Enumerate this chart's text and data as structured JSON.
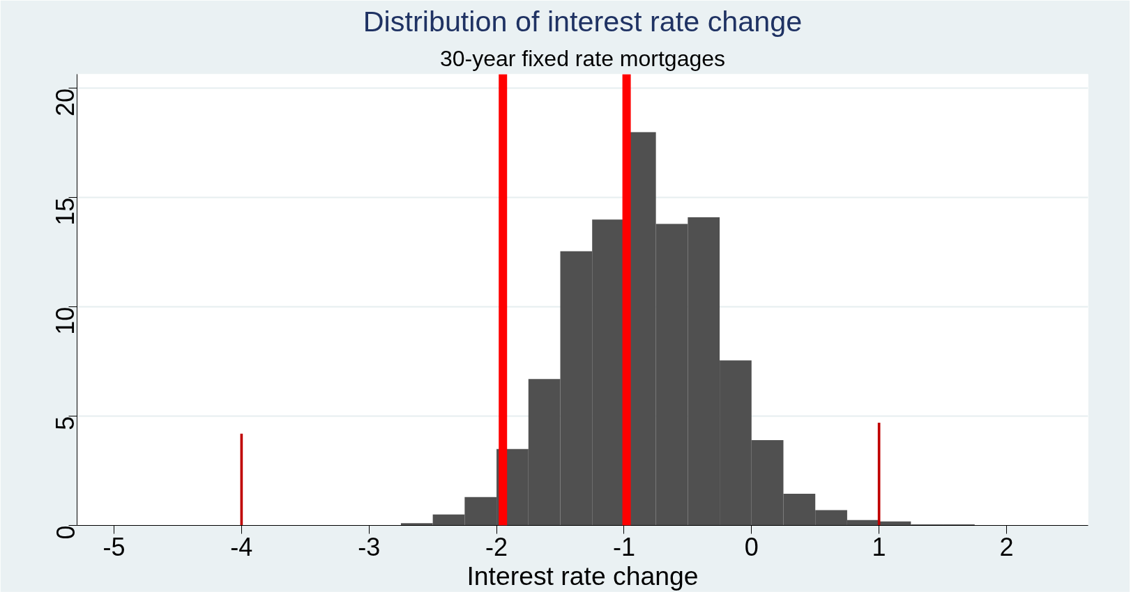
{
  "chart_data": {
    "type": "histogram",
    "title": "Distribution of interest rate change",
    "subtitle": "30-year fixed rate mortgages",
    "xlabel": "Interest rate change",
    "bins": [
      -2.75,
      -2.5,
      -2.25,
      -2.0,
      -1.75,
      -1.5,
      -1.25,
      -1.0,
      -0.75,
      -0.5,
      -0.25,
      0.0,
      0.25,
      0.5,
      0.75,
      1.0,
      1.25,
      1.5,
      1.75
    ],
    "values": [
      0.1,
      0.5,
      1.3,
      3.5,
      6.7,
      12.55,
      14.0,
      18.0,
      13.8,
      14.1,
      7.55,
      3.9,
      1.45,
      0.7,
      0.25,
      0.18,
      0.05,
      0.05
    ],
    "color": "#505050",
    "series": [
      {
        "type": "bar",
        "x": [
          -4,
          1
        ],
        "values": [
          4.2,
          4.7
        ],
        "color": "#c00000"
      }
    ],
    "ref_lines": [
      {
        "axis": "x",
        "value": -1.95,
        "color": "#ff0000"
      },
      {
        "axis": "x",
        "value": -0.98,
        "color": "#ff0000"
      }
    ],
    "xlim": [
      -5.29,
      2.64
    ],
    "ylim": [
      0,
      20.65
    ],
    "xticks": [
      -5,
      -4,
      -3,
      -2,
      -1,
      0,
      1,
      2
    ],
    "yticks": [
      0,
      5,
      10,
      15,
      20
    ],
    "grid": "y"
  }
}
